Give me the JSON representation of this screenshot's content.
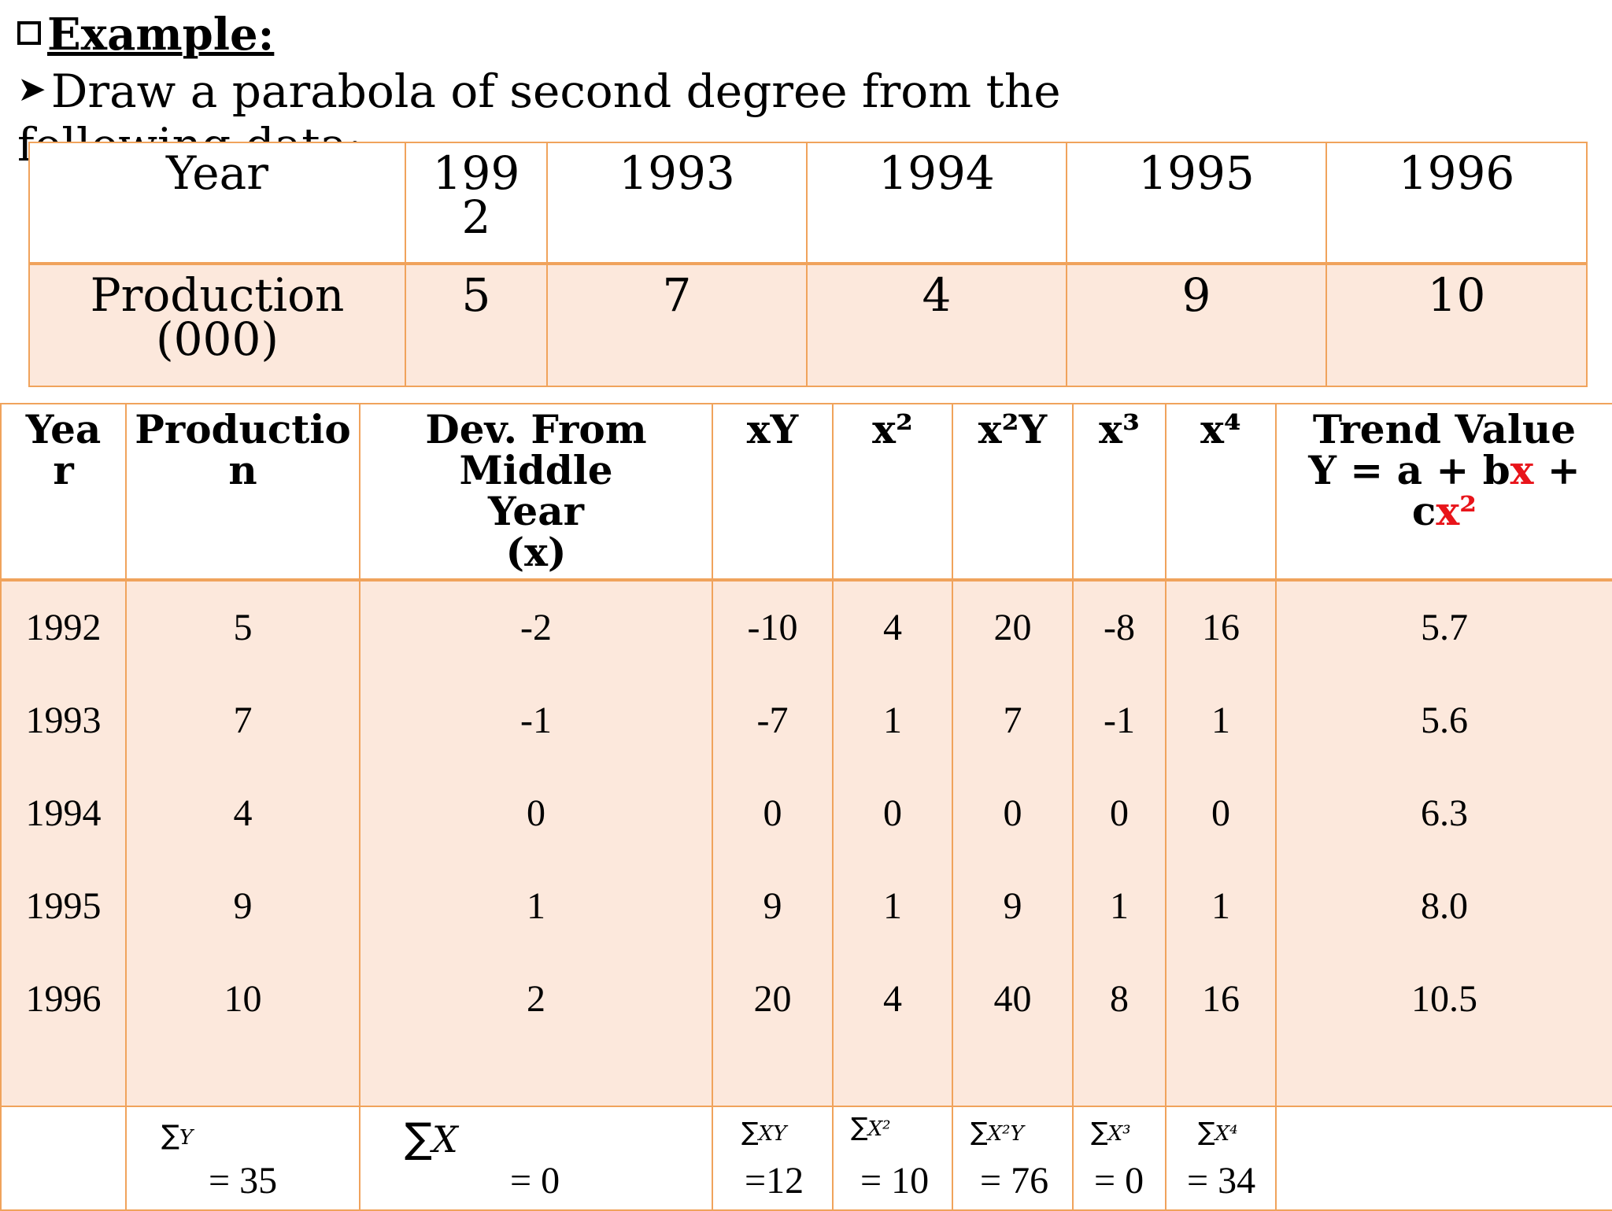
{
  "heading": "Example:",
  "instruction": "Draw a parabola of second degree from the following data:-",
  "table1": {
    "row1": [
      "Year",
      "199\n2",
      "1993",
      "1994",
      "1995",
      "1996"
    ],
    "row2": [
      "Production\n(000)",
      "5",
      "7",
      "4",
      "9",
      "10"
    ]
  },
  "table2": {
    "headers": {
      "year": "Yea\nr",
      "production": "Productio\nn",
      "dev": "Dev. From\nMiddle\nYear\n(x)",
      "xy": "xY",
      "x2": "x²",
      "x2y": "x²Y",
      "x3": "x³",
      "x4": "x⁴",
      "trend_a": "Trend Value\nY = a + b",
      "trend_x": "x",
      "trend_b": " +\nc",
      "trend_x2": "x²"
    },
    "columns": {
      "year": [
        "1992",
        "1993",
        "1994",
        "1995",
        "1996"
      ],
      "production": [
        "5",
        "7",
        "4",
        "9",
        "10"
      ],
      "dev": [
        "-2",
        "-1",
        "0",
        "1",
        "2"
      ],
      "xy": [
        "-10",
        "-7",
        "0",
        "9",
        "20"
      ],
      "x2": [
        "4",
        "1",
        "0",
        "1",
        "4"
      ],
      "x2y": [
        "20",
        "7",
        "0",
        "9",
        "40"
      ],
      "x3": [
        "-8",
        "-1",
        "0",
        "1",
        "8"
      ],
      "x4": [
        "16",
        "1",
        "0",
        "1",
        "16"
      ],
      "trend": [
        "5.7",
        "5.6",
        "6.3",
        "8.0",
        "10.5"
      ]
    },
    "sums": {
      "y_label": "Y",
      "y_val": "= 35",
      "x_label": "X",
      "x_val": "= 0",
      "xy_label": "XY",
      "xy_val": "=12",
      "x2_label": "X²",
      "x2_val": "= 10",
      "x2y_label": "X²Y",
      "x2y_val": "= 76",
      "x3_label": "X³",
      "x3_val": "= 0",
      "x4_label": "X⁴",
      "x4_val": "= 34",
      "sigma": "∑"
    }
  },
  "colors": {
    "border": "#f0a35c",
    "shade": "#fce8dc",
    "highlight": "#e8141a"
  }
}
